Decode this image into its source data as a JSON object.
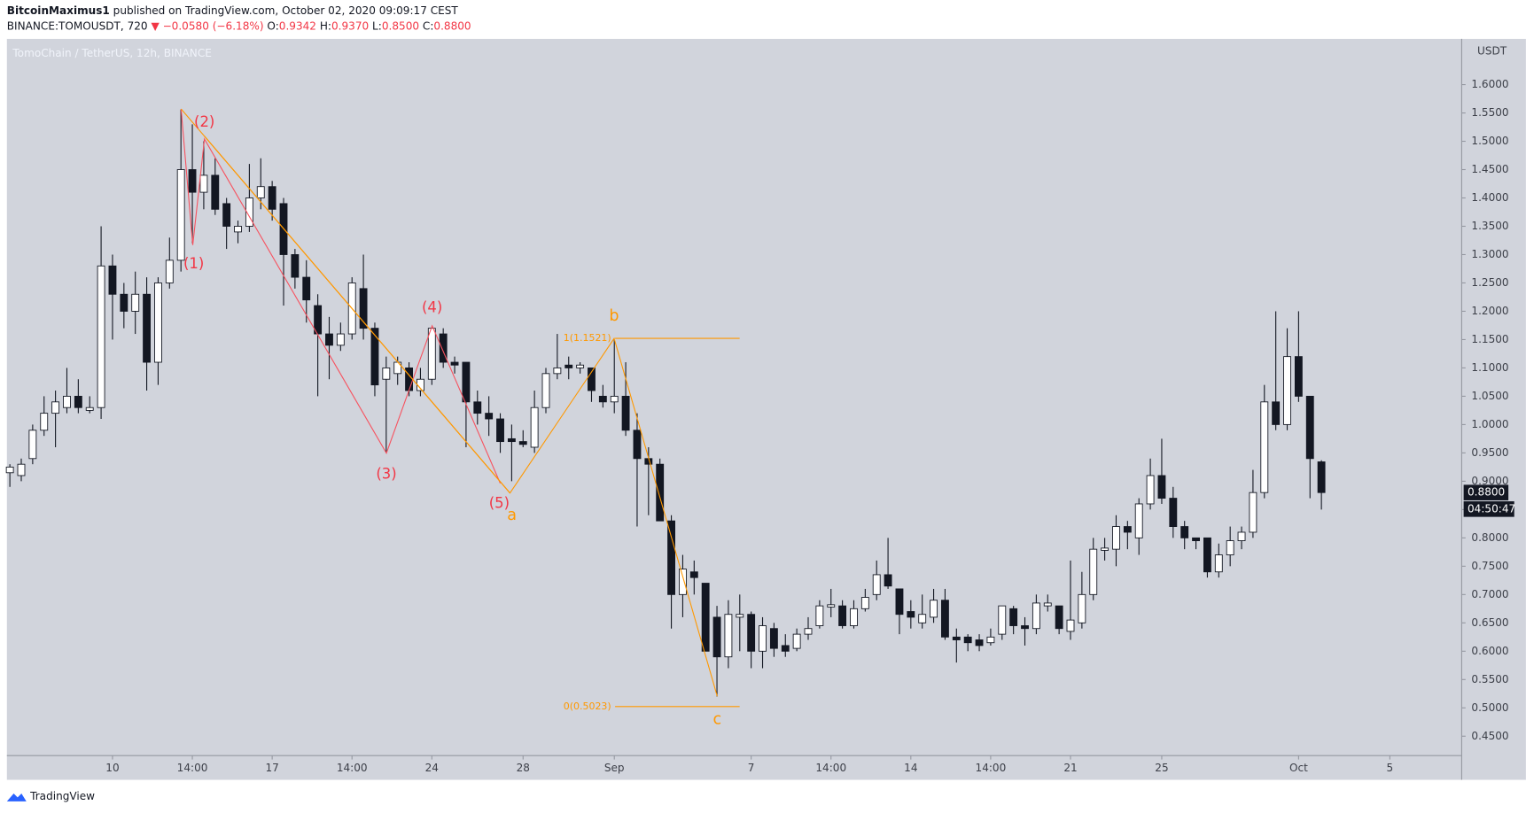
{
  "header": {
    "publisher": "BitcoinMaximus1",
    "published_text": "published on TradingView.com, October 02, 2020 09:09:17 CEST",
    "symbol": "BINANCE:TOMOUSDT, 720",
    "change": "▼ −0.0580 (−6.18%)",
    "ohlc": [
      {
        "label": "O:",
        "value": "0.9342"
      },
      {
        "label": "H:",
        "value": "0.9370"
      },
      {
        "label": "L:",
        "value": "0.8500"
      },
      {
        "label": "C:",
        "value": "0.8800"
      }
    ]
  },
  "chart_data": {
    "type": "candlestick",
    "title": "TomoChain / TetherUS, 12h, BINANCE",
    "y_axis_label": "USDT",
    "up_color": "#ffffff",
    "down_color": "#131722",
    "wick_color": "#131722",
    "open": [
      0.915,
      0.91,
      0.94,
      0.99,
      1.02,
      1.03,
      1.05,
      1.025,
      1.03,
      1.28,
      1.23,
      1.2,
      1.23,
      1.11,
      1.25,
      1.29,
      1.45,
      1.41,
      1.44,
      1.39,
      1.34,
      1.35,
      1.4,
      1.42,
      1.39,
      1.3,
      1.26,
      1.21,
      1.16,
      1.14,
      1.16,
      1.24,
      1.17,
      1.08,
      1.09,
      1.1,
      1.06,
      1.08,
      1.16,
      1.11,
      1.11,
      1.04,
      1.02,
      1.01,
      0.975,
      0.97,
      0.96,
      1.03,
      1.09,
      1.105,
      1.1,
      1.1,
      1.05,
      1.04,
      1.05,
      0.99,
      0.94,
      0.93,
      0.83,
      0.7,
      0.74,
      0.72,
      0.66,
      0.59,
      0.66,
      0.665,
      0.6,
      0.64,
      0.61,
      0.605,
      0.63,
      0.645,
      0.678,
      0.68,
      0.645,
      0.675,
      0.7,
      0.735,
      0.71,
      0.67,
      0.65,
      0.66,
      0.69,
      0.625,
      0.625,
      0.62,
      0.615,
      0.63,
      0.675,
      0.645,
      0.64,
      0.68,
      0.68,
      0.635,
      0.65,
      0.7,
      0.778,
      0.78,
      0.82,
      0.8,
      0.86,
      0.91,
      0.87,
      0.82,
      0.8,
      0.8,
      0.74,
      0.77,
      0.795,
      0.81,
      0.88,
      1.04,
      1.0,
      1.12,
      1.05,
      0.9342
    ],
    "high": [
      0.93,
      0.94,
      1.0,
      1.05,
      1.06,
      1.1,
      1.08,
      1.05,
      1.35,
      1.3,
      1.25,
      1.27,
      1.26,
      1.26,
      1.33,
      1.556,
      1.53,
      1.5,
      1.47,
      1.4,
      1.36,
      1.46,
      1.47,
      1.43,
      1.4,
      1.31,
      1.29,
      1.23,
      1.19,
      1.18,
      1.26,
      1.3,
      1.18,
      1.12,
      1.12,
      1.11,
      1.1,
      1.17,
      1.17,
      1.12,
      1.11,
      1.06,
      1.05,
      1.02,
      1.0,
      0.99,
      1.06,
      1.1,
      1.16,
      1.12,
      1.11,
      1.1,
      1.07,
      1.15,
      1.11,
      1.02,
      0.96,
      0.94,
      0.84,
      0.77,
      0.76,
      0.72,
      0.68,
      0.69,
      0.7,
      0.67,
      0.66,
      0.65,
      0.63,
      0.64,
      0.66,
      0.69,
      0.71,
      0.69,
      0.69,
      0.71,
      0.76,
      0.8,
      0.71,
      0.69,
      0.7,
      0.71,
      0.71,
      0.64,
      0.63,
      0.63,
      0.64,
      0.68,
      0.68,
      0.66,
      0.7,
      0.7,
      0.68,
      0.76,
      0.74,
      0.8,
      0.8,
      0.84,
      0.83,
      0.87,
      0.94,
      0.975,
      0.89,
      0.83,
      0.8,
      0.8,
      0.79,
      0.82,
      0.82,
      0.92,
      1.07,
      1.2,
      1.17,
      1.2,
      1.05,
      0.937
    ],
    "low": [
      0.89,
      0.9,
      0.93,
      0.98,
      0.96,
      1.02,
      1.02,
      1.02,
      1.01,
      1.15,
      1.17,
      1.16,
      1.06,
      1.07,
      1.24,
      1.27,
      1.32,
      1.38,
      1.37,
      1.31,
      1.32,
      1.34,
      1.38,
      1.36,
      1.21,
      1.24,
      1.18,
      1.05,
      1.08,
      1.13,
      1.15,
      1.15,
      1.05,
      0.95,
      1.07,
      1.05,
      1.05,
      1.07,
      1.1,
      1.09,
      0.96,
      1.0,
      0.98,
      0.95,
      0.9,
      0.96,
      0.95,
      1.02,
      1.08,
      1.08,
      1.09,
      1.04,
      1.03,
      1.02,
      0.98,
      0.82,
      0.84,
      0.83,
      0.64,
      0.66,
      0.7,
      0.6,
      0.52,
      0.57,
      0.6,
      0.57,
      0.57,
      0.59,
      0.59,
      0.6,
      0.62,
      0.64,
      0.66,
      0.64,
      0.64,
      0.67,
      0.69,
      0.71,
      0.63,
      0.64,
      0.64,
      0.65,
      0.62,
      0.58,
      0.6,
      0.6,
      0.61,
      0.62,
      0.63,
      0.61,
      0.63,
      0.67,
      0.63,
      0.62,
      0.64,
      0.69,
      0.76,
      0.75,
      0.78,
      0.77,
      0.85,
      0.86,
      0.8,
      0.78,
      0.78,
      0.73,
      0.73,
      0.75,
      0.78,
      0.8,
      0.87,
      0.99,
      0.99,
      1.04,
      0.87,
      0.85
    ],
    "close": [
      0.925,
      0.93,
      0.99,
      1.02,
      1.04,
      1.05,
      1.03,
      1.03,
      1.28,
      1.23,
      1.2,
      1.23,
      1.11,
      1.25,
      1.29,
      1.45,
      1.41,
      1.44,
      1.38,
      1.35,
      1.35,
      1.4,
      1.42,
      1.38,
      1.3,
      1.26,
      1.22,
      1.16,
      1.14,
      1.16,
      1.25,
      1.17,
      1.07,
      1.1,
      1.11,
      1.06,
      1.08,
      1.17,
      1.11,
      1.105,
      1.04,
      1.02,
      1.01,
      0.97,
      0.97,
      0.965,
      1.03,
      1.09,
      1.1,
      1.1,
      1.105,
      1.06,
      1.04,
      1.05,
      0.99,
      0.94,
      0.93,
      0.83,
      0.7,
      0.745,
      0.73,
      0.6,
      0.59,
      0.665,
      0.665,
      0.6,
      0.645,
      0.605,
      0.6,
      0.63,
      0.64,
      0.68,
      0.682,
      0.645,
      0.675,
      0.695,
      0.735,
      0.715,
      0.665,
      0.66,
      0.665,
      0.69,
      0.625,
      0.62,
      0.615,
      0.61,
      0.625,
      0.68,
      0.645,
      0.64,
      0.685,
      0.685,
      0.64,
      0.655,
      0.7,
      0.78,
      0.782,
      0.82,
      0.81,
      0.86,
      0.91,
      0.87,
      0.82,
      0.8,
      0.795,
      0.74,
      0.77,
      0.795,
      0.81,
      0.88,
      1.04,
      1.0,
      1.12,
      1.05,
      0.94,
      0.88
    ],
    "ylim": [
      0.4157,
      1.6807
    ],
    "yticks": [
      {
        "value": 0.45,
        "label": "0.4500"
      },
      {
        "value": 0.5,
        "label": "0.5000"
      },
      {
        "value": 0.55,
        "label": "0.5500"
      },
      {
        "value": 0.6,
        "label": "0.6000"
      },
      {
        "value": 0.65,
        "label": "0.6500"
      },
      {
        "value": 0.7,
        "label": "0.7000"
      },
      {
        "value": 0.75,
        "label": "0.7500"
      },
      {
        "value": 0.8,
        "label": "0.8000"
      },
      {
        "value": 0.85,
        "label": "0.8500"
      },
      {
        "value": 0.9,
        "label": "0.9000"
      },
      {
        "value": 0.95,
        "label": "0.9500"
      },
      {
        "value": 1.0,
        "label": "1.0000"
      },
      {
        "value": 1.05,
        "label": "1.0500"
      },
      {
        "value": 1.1,
        "label": "1.1000"
      },
      {
        "value": 1.15,
        "label": "1.1500"
      },
      {
        "value": 1.2,
        "label": "1.2000"
      },
      {
        "value": 1.25,
        "label": "1.2500"
      },
      {
        "value": 1.3,
        "label": "1.3000"
      },
      {
        "value": 1.35,
        "label": "1.3500"
      },
      {
        "value": 1.4,
        "label": "1.4000"
      },
      {
        "value": 1.45,
        "label": "1.4500"
      },
      {
        "value": 1.5,
        "label": "1.5000"
      },
      {
        "value": 1.55,
        "label": "1.5500"
      },
      {
        "value": 1.6,
        "label": "1.6000"
      }
    ],
    "xlim": [
      -0.26,
      127.3
    ],
    "xticks": [
      {
        "value": 9,
        "label": "10"
      },
      {
        "value": 16,
        "label": "14:00"
      },
      {
        "value": 23,
        "label": "17"
      },
      {
        "value": 30,
        "label": "14:00"
      },
      {
        "value": 37,
        "label": "24"
      },
      {
        "value": 45,
        "label": "28"
      },
      {
        "value": 53,
        "label": "Sep"
      },
      {
        "value": 65,
        "label": "7"
      },
      {
        "value": 72,
        "label": "14:00"
      },
      {
        "value": 79,
        "label": "14"
      },
      {
        "value": 86,
        "label": "14:00"
      },
      {
        "value": 93,
        "label": "21"
      },
      {
        "value": 101,
        "label": "25"
      },
      {
        "value": 113,
        "label": "Oct"
      },
      {
        "value": 121,
        "label": "5"
      }
    ],
    "last_price": {
      "value": 0.88,
      "label": "0.8800"
    },
    "countdown": "04:50:47",
    "fib_levels": [
      {
        "value": 1.1521,
        "label": "1(1.1521)"
      },
      {
        "value": 0.5023,
        "label": "0(0.5023)"
      }
    ],
    "wave_labels": [
      "(1)",
      "(2)",
      "(3)",
      "(4)",
      "(5)",
      "a",
      "b",
      "c"
    ]
  },
  "footer": {
    "brand": "TradingView"
  }
}
